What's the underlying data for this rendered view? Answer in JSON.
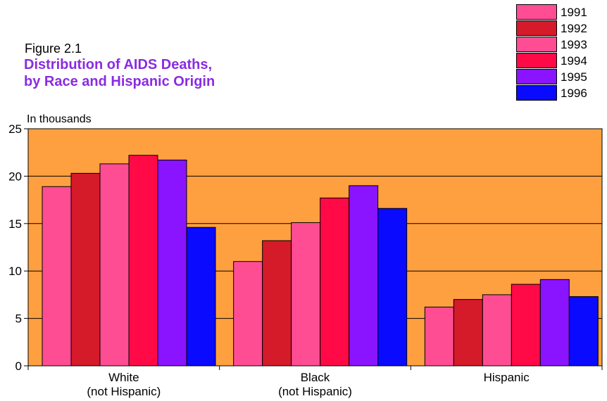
{
  "figure": {
    "label": "Figure 2.1",
    "title_line1": "Distribution of AIDS Deaths,",
    "title_line2": "by Race and Hispanic Origin"
  },
  "colors": {
    "plot_background": "#ffa040",
    "title": "#8a2be2"
  },
  "chart_data": {
    "type": "bar",
    "title": "Distribution of AIDS Deaths, by Race and Hispanic Origin",
    "ylabel": "In thousands",
    "xlabel": "",
    "ylim": [
      0,
      25
    ],
    "yticks": [
      0,
      5,
      10,
      15,
      20,
      25
    ],
    "grid": true,
    "legend_position": "top-right",
    "categories": [
      [
        "White",
        "(not Hispanic)"
      ],
      [
        "Black",
        "(not Hispanic)"
      ],
      [
        "Hispanic"
      ]
    ],
    "series": [
      {
        "name": "1991",
        "color": "#ff4d94",
        "values": [
          18.9,
          11.0,
          6.2
        ]
      },
      {
        "name": "1992",
        "color": "#d51a2a",
        "values": [
          20.3,
          13.2,
          7.0
        ]
      },
      {
        "name": "1993",
        "color": "#ff4d94",
        "values": [
          21.3,
          15.1,
          7.5
        ]
      },
      {
        "name": "1994",
        "color": "#ff0a47",
        "values": [
          22.2,
          17.7,
          8.6
        ]
      },
      {
        "name": "1995",
        "color": "#8a14ff",
        "values": [
          21.7,
          19.0,
          9.1
        ]
      },
      {
        "name": "1996",
        "color": "#0a0aff",
        "values": [
          14.6,
          16.6,
          7.3
        ]
      }
    ]
  }
}
